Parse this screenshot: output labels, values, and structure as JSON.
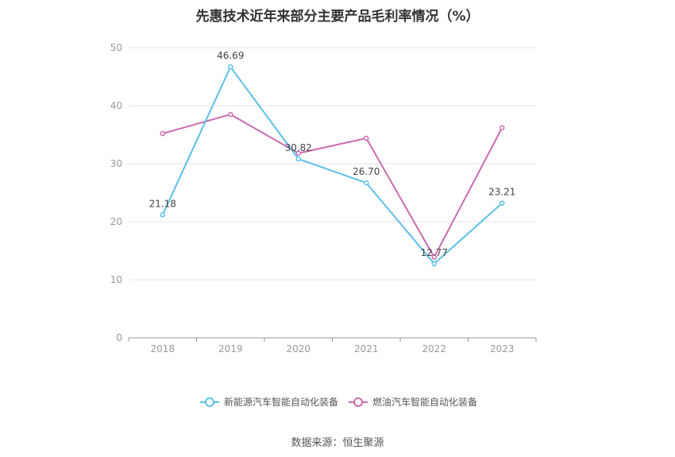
{
  "source_note": "数据来源：恒生聚源",
  "chart_data": {
    "type": "line",
    "title": "先惠技术近年来部分主要产品毛利率情况（%）",
    "categories": [
      "2018",
      "2019",
      "2020",
      "2021",
      "2022",
      "2023"
    ],
    "ylim": [
      0,
      50
    ],
    "yticks": [
      0,
      10,
      20,
      30,
      40,
      50
    ],
    "grid": true,
    "legend_position": "bottom",
    "series": [
      {
        "name": "新能源汽车智能自动化装备",
        "color": "#5bc0eb",
        "values": [
          21.18,
          46.69,
          30.82,
          26.7,
          12.77,
          23.21
        ],
        "labels": [
          "21.18",
          "46.69",
          "30.82",
          "26.70",
          "12.77",
          "23.21"
        ]
      },
      {
        "name": "燃油汽车智能自动化装备",
        "color": "#cc6bb0",
        "values": [
          35.2,
          38.5,
          31.8,
          34.4,
          13.9,
          36.2
        ],
        "labels": []
      }
    ]
  }
}
